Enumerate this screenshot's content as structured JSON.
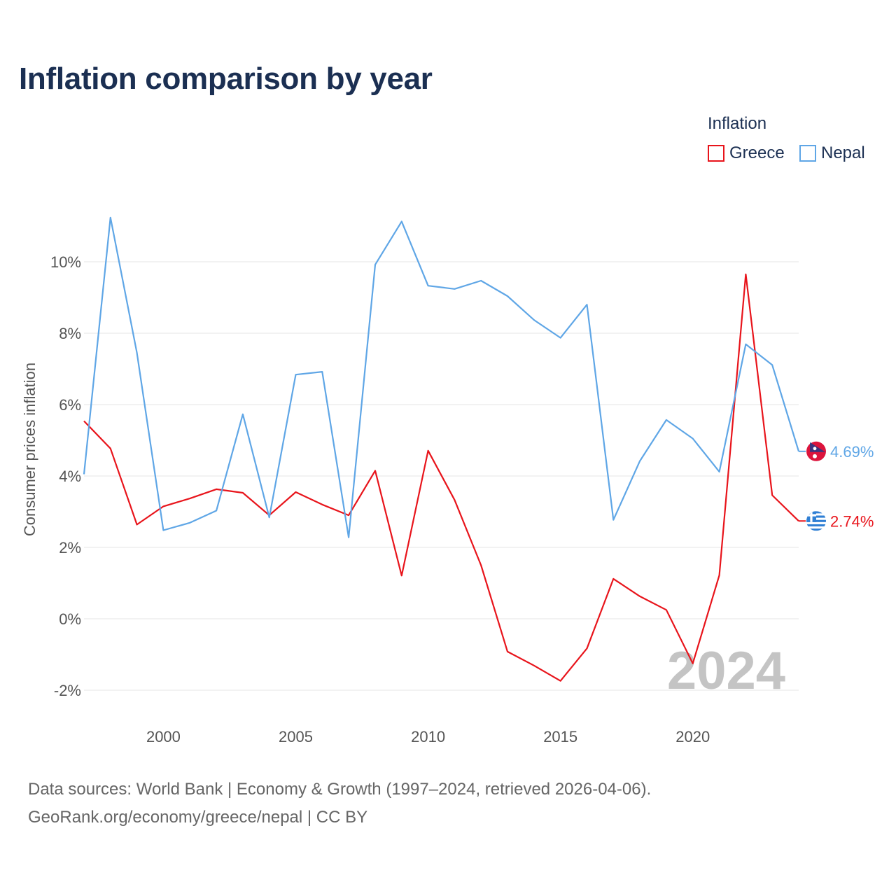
{
  "title": "Inflation comparison by year",
  "legend": {
    "title": "Inflation",
    "items": [
      {
        "label": "Greece",
        "color": "#e8141b"
      },
      {
        "label": "Nepal",
        "color": "#5fa6e6"
      }
    ]
  },
  "footer": {
    "line1": "Data sources: World Bank | Economy & Growth (1997–2024, retrieved 2026-04-06).",
    "line2": "GeoRank.org/economy/greece/nepal | CC BY"
  },
  "chart_data": {
    "type": "line",
    "title": "Inflation comparison by year",
    "xlabel": "",
    "ylabel": "Consumer prices inflation",
    "xlim": [
      1997,
      2024
    ],
    "ylim": [
      -2.5,
      11.5
    ],
    "yticks": [
      -2,
      0,
      2,
      4,
      6,
      8,
      10
    ],
    "ytick_labels": [
      "-2%",
      "0%",
      "2%",
      "4%",
      "6%",
      "8%",
      "10%"
    ],
    "xticks": [
      2000,
      2005,
      2010,
      2015,
      2020
    ],
    "xtick_labels": [
      "2000",
      "2005",
      "2010",
      "2015",
      "2020"
    ],
    "grid": true,
    "legend_position": "top-right",
    "watermark_year": "2024",
    "x": [
      1997,
      1998,
      1999,
      2000,
      2001,
      2002,
      2003,
      2004,
      2005,
      2006,
      2007,
      2008,
      2009,
      2010,
      2011,
      2012,
      2013,
      2014,
      2015,
      2016,
      2017,
      2018,
      2019,
      2020,
      2021,
      2022,
      2023,
      2024
    ],
    "series": [
      {
        "name": "Greece",
        "color": "#e8141b",
        "end_label": "2.74%",
        "end_icon": "greece-flag",
        "values": [
          5.54,
          4.77,
          2.64,
          3.15,
          3.37,
          3.63,
          3.53,
          2.9,
          3.55,
          3.2,
          2.9,
          4.15,
          1.21,
          4.71,
          3.33,
          1.5,
          -0.92,
          -1.31,
          -1.74,
          -0.83,
          1.12,
          0.63,
          0.25,
          -1.25,
          1.22,
          9.65,
          3.46,
          2.74
        ]
      },
      {
        "name": "Nepal",
        "color": "#5fa6e6",
        "end_label": "4.69%",
        "end_icon": "nepal-flag",
        "values": [
          4.05,
          11.24,
          7.45,
          2.48,
          2.69,
          3.03,
          5.73,
          2.84,
          6.84,
          6.92,
          2.28,
          9.92,
          11.13,
          9.33,
          9.24,
          9.47,
          9.04,
          8.37,
          7.87,
          8.8,
          2.77,
          4.42,
          5.57,
          5.05,
          4.12,
          7.69,
          7.11,
          4.69
        ]
      }
    ]
  }
}
